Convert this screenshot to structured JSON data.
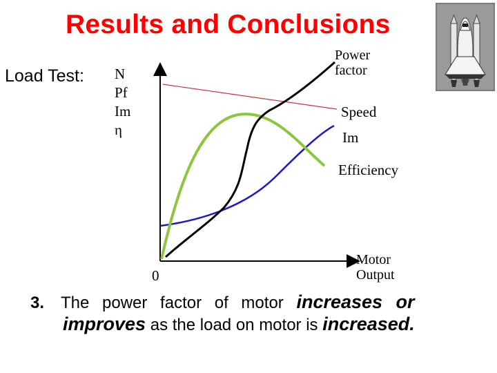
{
  "slide": {
    "title": "Results and Conclusions",
    "load_test_label": "Load Test:"
  },
  "y_axis_labels": [
    "N",
    "Pf",
    "Im",
    "η"
  ],
  "curves": {
    "power_factor": "Power factor",
    "power_factor_line1": "Power",
    "power_factor_line2": "factor",
    "speed": "Speed",
    "im": "Im",
    "efficiency": "Efficiency"
  },
  "x_axis": {
    "origin_label": "0",
    "label_line1": "Motor",
    "label_line2": "Output"
  },
  "colors": {
    "title": "#ff0000",
    "speed_curve": "#c8343c",
    "current_curve": "#1a1acc",
    "efficiency_curve": "#8cc63f",
    "power_factor_curve": "#000000"
  },
  "conclusion": {
    "number": "3.",
    "part1": "The power factor of motor",
    "emph1": "increases or",
    "emph2": "improves",
    "part2": "as the load on motor is",
    "emph3": "increased."
  },
  "icons": {
    "shuttle": "space-shuttle-icon"
  }
}
